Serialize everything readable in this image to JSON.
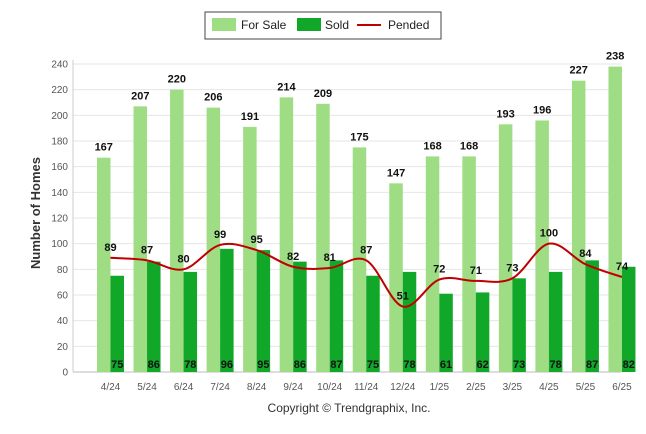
{
  "chart_data": {
    "type": "bar",
    "categories": [
      "4/24",
      "5/24",
      "6/24",
      "7/24",
      "8/24",
      "9/24",
      "10/24",
      "11/24",
      "12/24",
      "1/25",
      "2/25",
      "3/25",
      "4/25",
      "5/25",
      "6/25"
    ],
    "series": [
      {
        "name": "For Sale",
        "kind": "bar",
        "color": "#9edd83",
        "values": [
          167,
          207,
          220,
          206,
          191,
          214,
          209,
          175,
          147,
          168,
          168,
          193,
          196,
          227,
          238
        ]
      },
      {
        "name": "Sold",
        "kind": "bar",
        "color": "#11a82a",
        "values": [
          75,
          86,
          78,
          96,
          95,
          86,
          87,
          75,
          78,
          61,
          62,
          73,
          78,
          87,
          82
        ]
      },
      {
        "name": "Pended",
        "kind": "line",
        "color": "#c00000",
        "values": [
          89,
          87,
          80,
          99,
          95,
          82,
          81,
          87,
          51,
          72,
          71,
          73,
          100,
          84,
          74
        ]
      }
    ],
    "ylabel": "Number of Homes",
    "xlabel": "",
    "ylim": [
      0,
      240
    ],
    "yticks": [
      0,
      20,
      40,
      60,
      80,
      100,
      120,
      140,
      160,
      180,
      200,
      220,
      240
    ],
    "grid": true,
    "legend_position": "top-center"
  },
  "footer": {
    "copyright": "Copyright © Trendgraphix, Inc."
  }
}
